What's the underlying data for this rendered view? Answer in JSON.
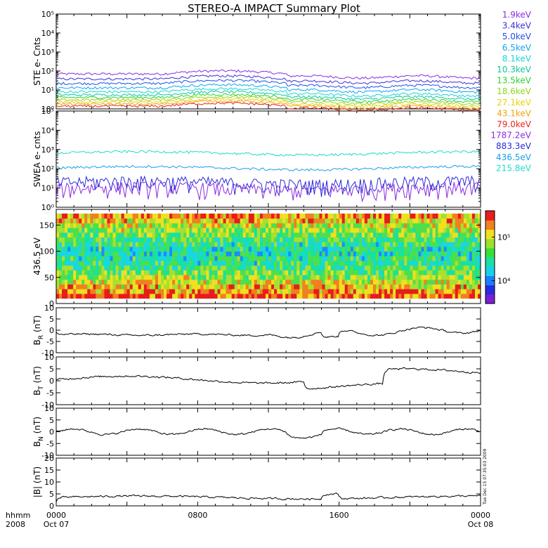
{
  "title": "STEREO-A IMPACT Summary Plot",
  "timestamp": "Tue Dec 15 07:35:03 2009",
  "x_axis": {
    "row1_label": "hhmm",
    "row2_label": "2008",
    "ticks": [
      {
        "t": 0,
        "time": "0000",
        "date": "Oct 07"
      },
      {
        "t": 8,
        "time": "0800",
        "date": ""
      },
      {
        "t": 16,
        "time": "1600",
        "date": ""
      },
      {
        "t": 24,
        "time": "0000",
        "date": "Oct 08"
      }
    ],
    "range_hours": [
      0,
      24
    ]
  },
  "chart_data": [
    {
      "type": "line",
      "panel": "ste",
      "ylabel": "STE e- Cnts",
      "log_scale": true,
      "ylim": [
        1,
        100000
      ],
      "ytick_labels": [
        "10⁰",
        "10¹",
        "10²",
        "10³",
        "10⁴",
        "10⁵"
      ],
      "series": [
        {
          "name": "1.9keV",
          "color": "#8a2be2",
          "level": 70
        },
        {
          "name": "3.4keV",
          "color": "#3f2fd6",
          "level": 38
        },
        {
          "name": "5.0keV",
          "color": "#1f4ff0",
          "level": 22
        },
        {
          "name": "6.5keV",
          "color": "#12a6ee",
          "level": 13
        },
        {
          "name": "8.1keV",
          "color": "#16d8d8",
          "level": 8
        },
        {
          "name": "10.3keV",
          "color": "#11c79a",
          "level": 5.5
        },
        {
          "name": "13.5keV",
          "color": "#2fd12f",
          "level": 4
        },
        {
          "name": "18.6keV",
          "color": "#92d71b",
          "level": 3
        },
        {
          "name": "27.1keV",
          "color": "#e8d20c",
          "level": 2.3
        },
        {
          "name": "43.1keV",
          "color": "#f0a40c",
          "level": 1.8
        },
        {
          "name": "79.0keV",
          "color": "#e8261c",
          "level": 1.4
        }
      ]
    },
    {
      "type": "line",
      "panel": "swea",
      "ylabel": "SWEA e- cnts",
      "log_scale": true,
      "ylim": [
        1,
        100000
      ],
      "ytick_labels": [
        "10⁰",
        "10¹",
        "10²",
        "10³",
        "10⁴",
        "10⁵"
      ],
      "series": [
        {
          "name": "1787.2eV",
          "color": "#8a2be2",
          "level": 7
        },
        {
          "name": "883.3eV",
          "color": "#2a2ad8",
          "level": 14
        },
        {
          "name": "436.5eV",
          "color": "#18a0e8",
          "level": 110
        },
        {
          "name": "215.8eV",
          "color": "#1ddcc8",
          "level": 650
        }
      ]
    },
    {
      "type": "heatmap",
      "panel": "pad",
      "ylabel": "436.5 eV",
      "ylim": [
        0,
        180
      ],
      "yticks": [
        0,
        50,
        100,
        150
      ],
      "colorbar": {
        "log_scale": true,
        "range": [
          3000,
          400000
        ],
        "tick_labels": [
          "10⁴",
          "10⁵"
        ]
      }
    },
    {
      "type": "line",
      "panel": "br",
      "ylabel": "B_R (nT)",
      "ylim": [
        -10,
        10
      ],
      "yticks": [
        -10,
        -5,
        0,
        5,
        10
      ]
    },
    {
      "type": "line",
      "panel": "bt",
      "ylabel": "B_T (nT)",
      "ylim": [
        -10,
        10
      ],
      "yticks": [
        -10,
        -5,
        0,
        5,
        10
      ]
    },
    {
      "type": "line",
      "panel": "bn",
      "ylabel": "B_N (nT)",
      "ylim": [
        -10,
        10
      ],
      "yticks": [
        -10,
        -5,
        0,
        5,
        10
      ]
    },
    {
      "type": "line",
      "panel": "bmag",
      "ylabel": "|B| (nT)",
      "ylim": [
        0,
        20
      ],
      "yticks": [
        0,
        5,
        10,
        15,
        20
      ]
    }
  ]
}
